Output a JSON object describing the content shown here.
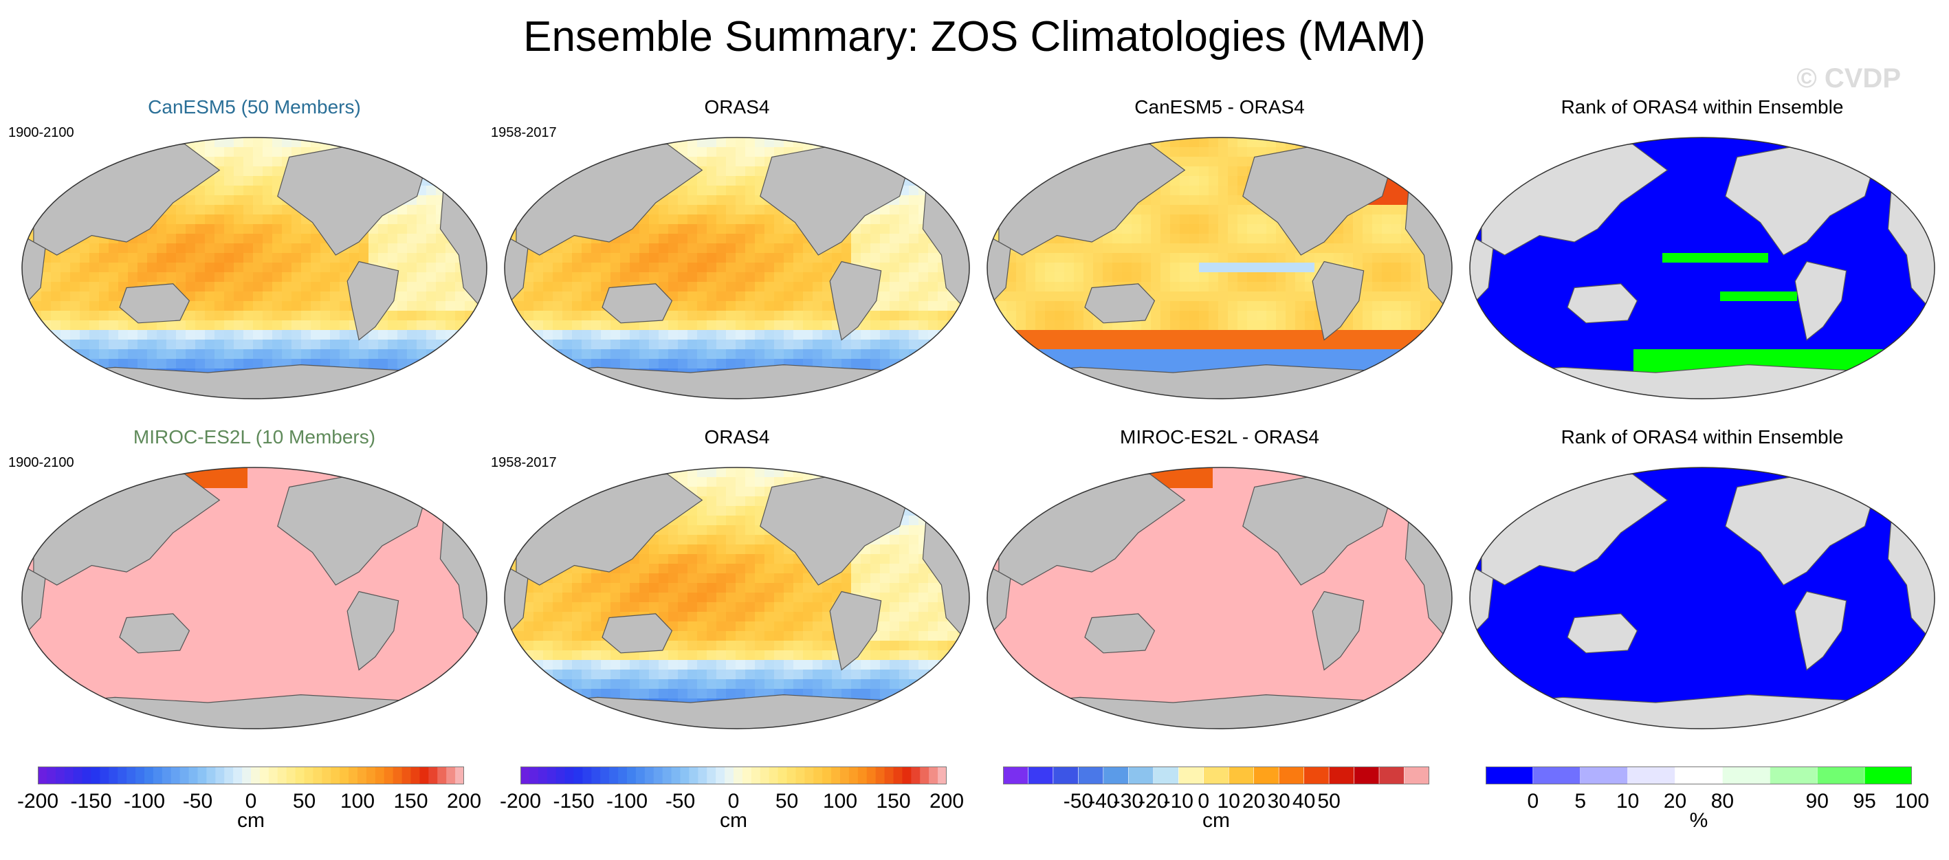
{
  "title": "Ensemble Summary: ZOS Climatologies (MAM)",
  "watermark": "© CVDP",
  "rows": [
    {
      "panels": [
        {
          "title": "CanESM5 (50 Members)",
          "title_color": "#2a6f97",
          "period": "1900-2100",
          "pattern": "clim",
          "kind": "field"
        },
        {
          "title": "ORAS4",
          "title_color": "#000000",
          "period": "1958-2017",
          "pattern": "clim",
          "kind": "field"
        },
        {
          "title": "CanESM5 - ORAS4",
          "title_color": "#000000",
          "period": "",
          "pattern": "diff",
          "kind": "field"
        },
        {
          "title": "Rank of ORAS4 within Ensemble",
          "title_color": "#000000",
          "period": "",
          "pattern": "rank",
          "kind": "rank"
        }
      ]
    },
    {
      "panels": [
        {
          "title": "MIROC-ES2L (10 Members)",
          "title_color": "#5f8a5a",
          "period": "1900-2100",
          "pattern": "flat",
          "kind": "field"
        },
        {
          "title": "ORAS4",
          "title_color": "#000000",
          "period": "1958-2017",
          "pattern": "clim",
          "kind": "field"
        },
        {
          "title": "MIROC-ES2L - ORAS4",
          "title_color": "#000000",
          "period": "",
          "pattern": "flat",
          "kind": "field"
        },
        {
          "title": "Rank of ORAS4 within Ensemble",
          "title_color": "#000000",
          "period": "",
          "pattern": "rank_flat",
          "kind": "rank"
        }
      ]
    }
  ],
  "colorbars": [
    {
      "unit": "cm",
      "type": "continuous",
      "min": -200,
      "max": 200,
      "ticks": [
        "-200",
        "-150",
        "-100",
        "-50",
        "0",
        "50",
        "100",
        "150",
        "200"
      ]
    },
    {
      "unit": "cm",
      "type": "continuous",
      "min": -200,
      "max": 200,
      "ticks": [
        "-200",
        "-150",
        "-100",
        "-50",
        "0",
        "50",
        "100",
        "150",
        "200"
      ]
    },
    {
      "unit": "cm",
      "type": "discrete",
      "ticks": [
        "-50",
        "-40",
        "-30",
        "-20",
        "-10",
        "0",
        "10",
        "20",
        "30",
        "40",
        "50"
      ],
      "colors": [
        "#7a2ff0",
        "#3a3af5",
        "#3c55e6",
        "#4a78e8",
        "#5b9be8",
        "#8cc3ee",
        "#bfe3f5",
        "#fff5b0",
        "#ffe170",
        "#ffc43a",
        "#ffa21a",
        "#fa7a10",
        "#ee4a0c",
        "#d61a08",
        "#c0000a",
        "#d23c3c",
        "#f7a8a8"
      ]
    },
    {
      "unit": "%",
      "type": "rank",
      "ticks": [
        "0",
        "5",
        "10",
        "20",
        "80",
        "90",
        "95",
        "100"
      ],
      "colors": [
        "#0000ff",
        "#7070ff",
        "#b0b0ff",
        "#e6e6ff",
        "#ffffff",
        "#e6ffe6",
        "#b0ffb0",
        "#70ff70",
        "#00ff00"
      ]
    }
  ],
  "colors": {
    "land": "#bebebe",
    "land_rank": "#dcdcdc",
    "flat_fill": "#ffb5b8",
    "rank_low": "#0000ff",
    "rank_high": "#00ff00"
  }
}
